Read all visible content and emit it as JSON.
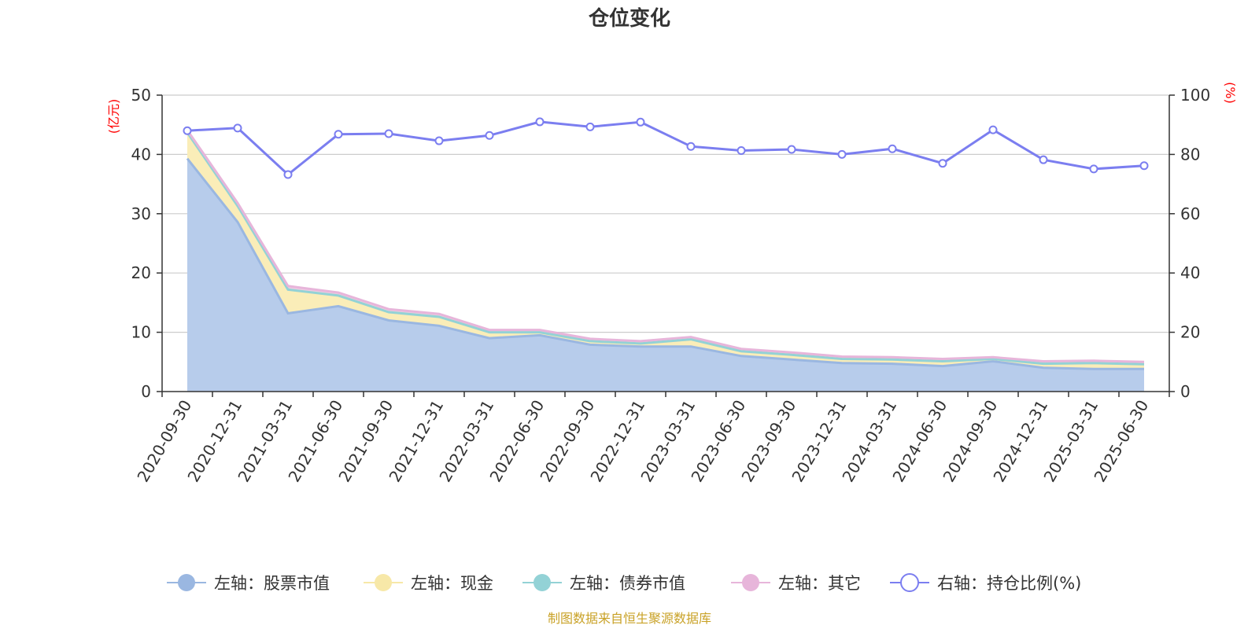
{
  "chart_data": {
    "type": "area",
    "title": "仓位变化",
    "left_axis_unit": "(亿元)",
    "right_axis_unit": "(%)",
    "ylim_left": [
      0,
      50
    ],
    "yticks_left": [
      "0",
      "10",
      "20",
      "30",
      "40",
      "50"
    ],
    "ylim_right": [
      0,
      100
    ],
    "yticks_right": [
      "0",
      "20",
      "40",
      "60",
      "80",
      "100"
    ],
    "grid": true,
    "legend_position": "bottom",
    "categories": [
      "2020-09-30",
      "2020-12-31",
      "2021-03-31",
      "2021-06-30",
      "2021-09-30",
      "2021-12-31",
      "2022-03-31",
      "2022-06-30",
      "2022-09-30",
      "2022-12-31",
      "2023-03-31",
      "2023-06-30",
      "2023-09-30",
      "2023-12-31",
      "2024-03-31",
      "2024-06-30",
      "2024-09-30",
      "2024-12-31",
      "2025-03-31",
      "2025-06-30"
    ],
    "series": [
      {
        "name": "左轴：股票市值",
        "axis": "left",
        "color": "#9ab7e1",
        "fill": "#b7cceb",
        "values": [
          39.3,
          28.6,
          13.2,
          14.4,
          12.0,
          11.1,
          9.0,
          9.5,
          7.9,
          7.6,
          7.6,
          6.0,
          5.4,
          4.8,
          4.7,
          4.3,
          5.1,
          4.0,
          3.8,
          3.8
        ]
      },
      {
        "name": "左轴：现金",
        "axis": "left",
        "color": "#f7e8a8",
        "fill": "#faedb8",
        "values": [
          4.4,
          2.7,
          4.0,
          1.8,
          1.4,
          1.5,
          1.0,
          0.5,
          0.6,
          0.5,
          1.2,
          0.8,
          0.8,
          0.7,
          0.7,
          0.8,
          0.4,
          0.7,
          1.0,
          0.8
        ]
      },
      {
        "name": "左轴：债券市值",
        "axis": "left",
        "color": "#93d2d6",
        "fill": "#b3e1e3",
        "values": [
          0,
          0,
          0,
          0,
          0,
          0,
          0,
          0,
          0,
          0,
          0,
          0,
          0,
          0,
          0,
          0,
          0,
          0,
          0,
          0
        ]
      },
      {
        "name": "左轴：其它",
        "axis": "left",
        "color": "#e7b5da",
        "fill": "#f0cbe5",
        "values": [
          0.4,
          0.5,
          0.6,
          0.5,
          0.5,
          0.5,
          0.4,
          0.4,
          0.4,
          0.4,
          0.4,
          0.4,
          0.4,
          0.4,
          0.4,
          0.4,
          0.3,
          0.4,
          0.4,
          0.4
        ]
      },
      {
        "name": "右轴：持仓比例(%)",
        "axis": "right",
        "color": "#7b7ef0",
        "values": [
          88.0,
          88.9,
          73.2,
          86.8,
          87.0,
          84.6,
          86.4,
          91.0,
          89.3,
          90.9,
          82.7,
          81.3,
          81.7,
          80.0,
          81.9,
          77.0,
          88.3,
          78.2,
          75.1,
          76.2
        ]
      }
    ]
  },
  "footer": {
    "source": "制图数据来自恒生聚源数据库"
  }
}
